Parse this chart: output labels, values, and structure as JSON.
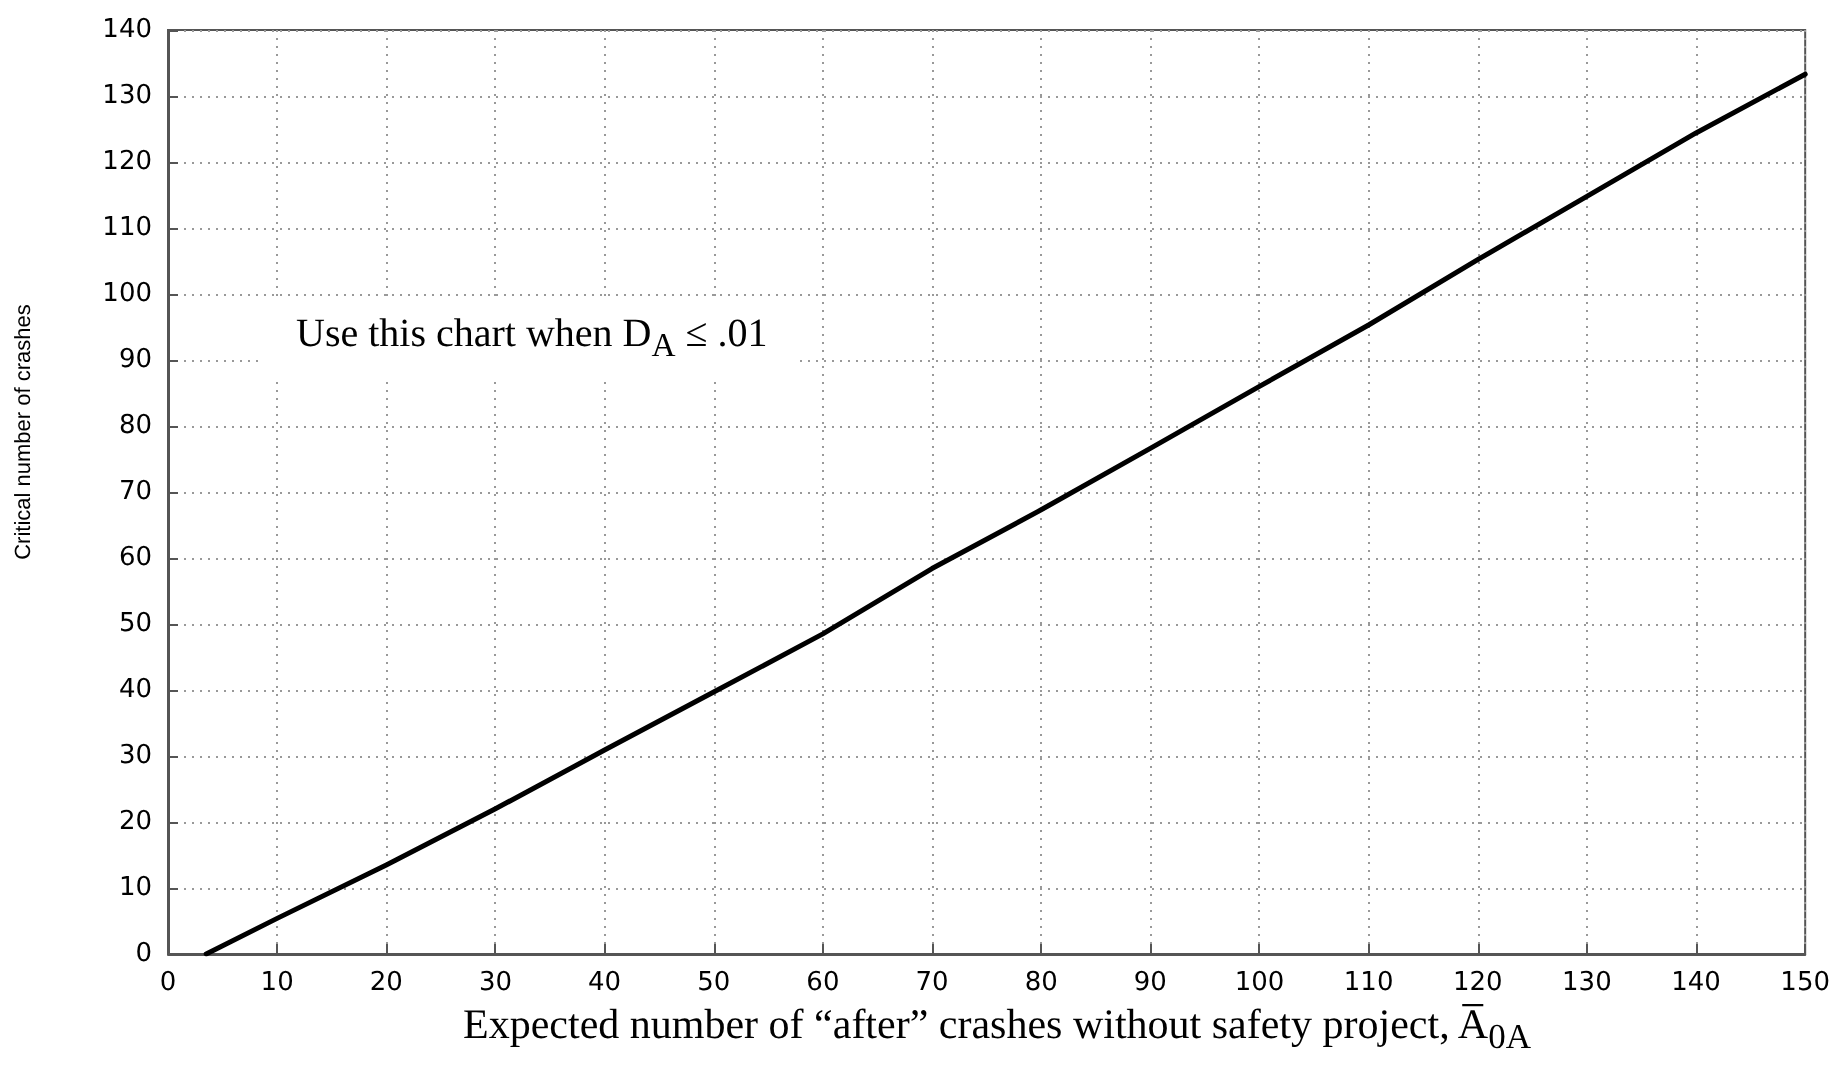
{
  "chart_data": {
    "type": "line",
    "xlabel": "Expected number of “after” crashes without safety project,  A̅$_{0A}$",
    "ylabel": "Critical number of crashes",
    "annotations": [
      "Use this chart when D$_{A}$ ≤ .01"
    ],
    "x": [
      3.5,
      10,
      20,
      30,
      40,
      50,
      60,
      70,
      80,
      90,
      100,
      110,
      120,
      130,
      140,
      150
    ],
    "series": [
      {
        "color": "#000000",
        "values": [
          0,
          5.4,
          13.5,
          22,
          30.9,
          39.7,
          48.5,
          58.4,
          67.3,
          76.6,
          86,
          95.3,
          105.2,
          114.8,
          124.4,
          133.3
        ]
      }
    ],
    "xlim": [
      0,
      150
    ],
    "xticks": [
      0,
      10,
      20,
      30,
      40,
      50,
      60,
      70,
      80,
      90,
      100,
      110,
      120,
      130,
      140,
      150
    ],
    "ylim": [
      0,
      140
    ],
    "yticks": [
      0,
      10,
      20,
      30,
      40,
      50,
      60,
      70,
      80,
      90,
      100,
      110,
      120,
      130,
      140
    ],
    "grid": true,
    "marker": "none",
    "line_style": "solid"
  }
}
